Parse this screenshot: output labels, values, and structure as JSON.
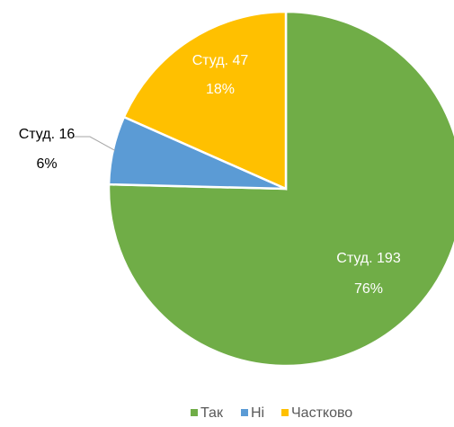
{
  "chart_data": {
    "type": "pie",
    "categories": [
      "Так",
      "Ні",
      "Частково"
    ],
    "values": [
      193,
      16,
      47
    ],
    "value_labels": [
      "Студ. 193",
      "Студ. 16",
      "Студ. 47"
    ],
    "percent_labels": [
      "76%",
      "6%",
      "18%"
    ],
    "colors": [
      "#70ad47",
      "#5b9bd5",
      "#ffc000"
    ],
    "legend": "bottom"
  }
}
